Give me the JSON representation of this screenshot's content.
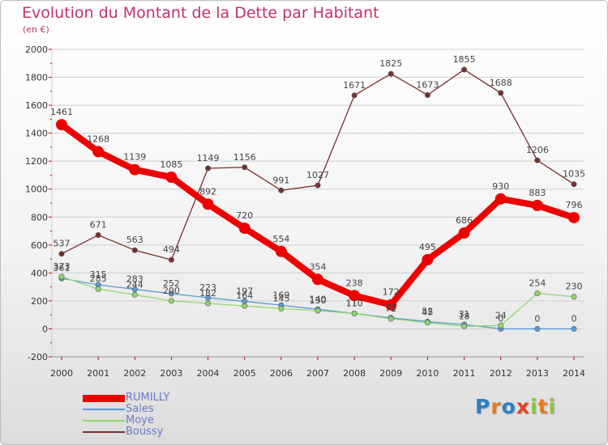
{
  "title": "Evolution du Montant de la Dette par Habitant",
  "subtitle": "(en €)",
  "logo": {
    "text": "Proxiti",
    "letters": [
      "P",
      "r",
      "o",
      "x",
      "i",
      "t",
      "i"
    ],
    "colors": [
      "#2b7fc4",
      "#e27b22",
      "#2b7fc4",
      "#e8431e",
      "#8cc540",
      "#e27b22",
      "#8cc540"
    ]
  },
  "colors": {
    "title": "#c0316c",
    "grid": "#cfcfcf",
    "tick_red": "#cc0000",
    "axis_text": "#333333",
    "label_text": "#444444"
  },
  "chart_data": {
    "type": "line",
    "title": "Evolution du Montant de la Dette par Habitant",
    "ylabel": "(en €)",
    "xlabel": "",
    "ylim": [
      -200,
      2000
    ],
    "yticks": [
      -200,
      0,
      200,
      400,
      600,
      800,
      1000,
      1200,
      1400,
      1600,
      1800,
      2000
    ],
    "grid": "horizontal",
    "legend_position": "bottom-left",
    "x": [
      "2000",
      "2001",
      "2002",
      "2003",
      "2004",
      "2005",
      "2006",
      "2007",
      "2008",
      "2009",
      "2010",
      "2011",
      "2012",
      "2013",
      "2014"
    ],
    "series": [
      {
        "name": "RUMILLY",
        "color": "#ee0000",
        "emphasis": true,
        "values": [
          1461,
          1268,
          1139,
          1085,
          892,
          720,
          554,
          354,
          238,
          172,
          495,
          686,
          930,
          883,
          796
        ],
        "labels": [
          "1461",
          "1268",
          "1139",
          "1085",
          "892",
          "720",
          "554",
          "354",
          "238",
          "172",
          "495",
          "686",
          "930",
          "883",
          "796"
        ]
      },
      {
        "name": "Sales",
        "color": "#5b9bd5",
        "emphasis": false,
        "values": [
          361,
          315,
          283,
          252,
          223,
          197,
          169,
          140,
          110,
          79,
          52,
          31,
          0,
          0,
          0
        ],
        "labels": [
          "361",
          "315",
          "283",
          "252",
          "223",
          "197",
          "169",
          "140",
          "110",
          "79",
          "52",
          "31",
          "0",
          "0",
          "0"
        ]
      },
      {
        "name": "Moye",
        "color": "#8ed86b",
        "emphasis": false,
        "values": [
          373,
          285,
          244,
          200,
          182,
          164,
          145,
          130,
          110,
          72,
          45,
          18,
          24,
          254,
          230
        ],
        "labels": [
          "373",
          "285",
          "244",
          "200",
          "182",
          "164",
          "145",
          "130",
          "110",
          "72",
          "45",
          "18",
          "24",
          "254",
          "230"
        ]
      },
      {
        "name": "Boussy",
        "color": "#7a2e2e",
        "emphasis": false,
        "values": [
          537,
          671,
          563,
          494,
          1149,
          1156,
          991,
          1027,
          1671,
          1825,
          1673,
          1855,
          1688,
          1206,
          1035
        ],
        "labels": [
          "537",
          "671",
          "563",
          "494",
          "1149",
          "1156",
          "991",
          "1027",
          "1671",
          "1825",
          "1673",
          "1855",
          "1688",
          "1206",
          "1035"
        ]
      }
    ]
  }
}
